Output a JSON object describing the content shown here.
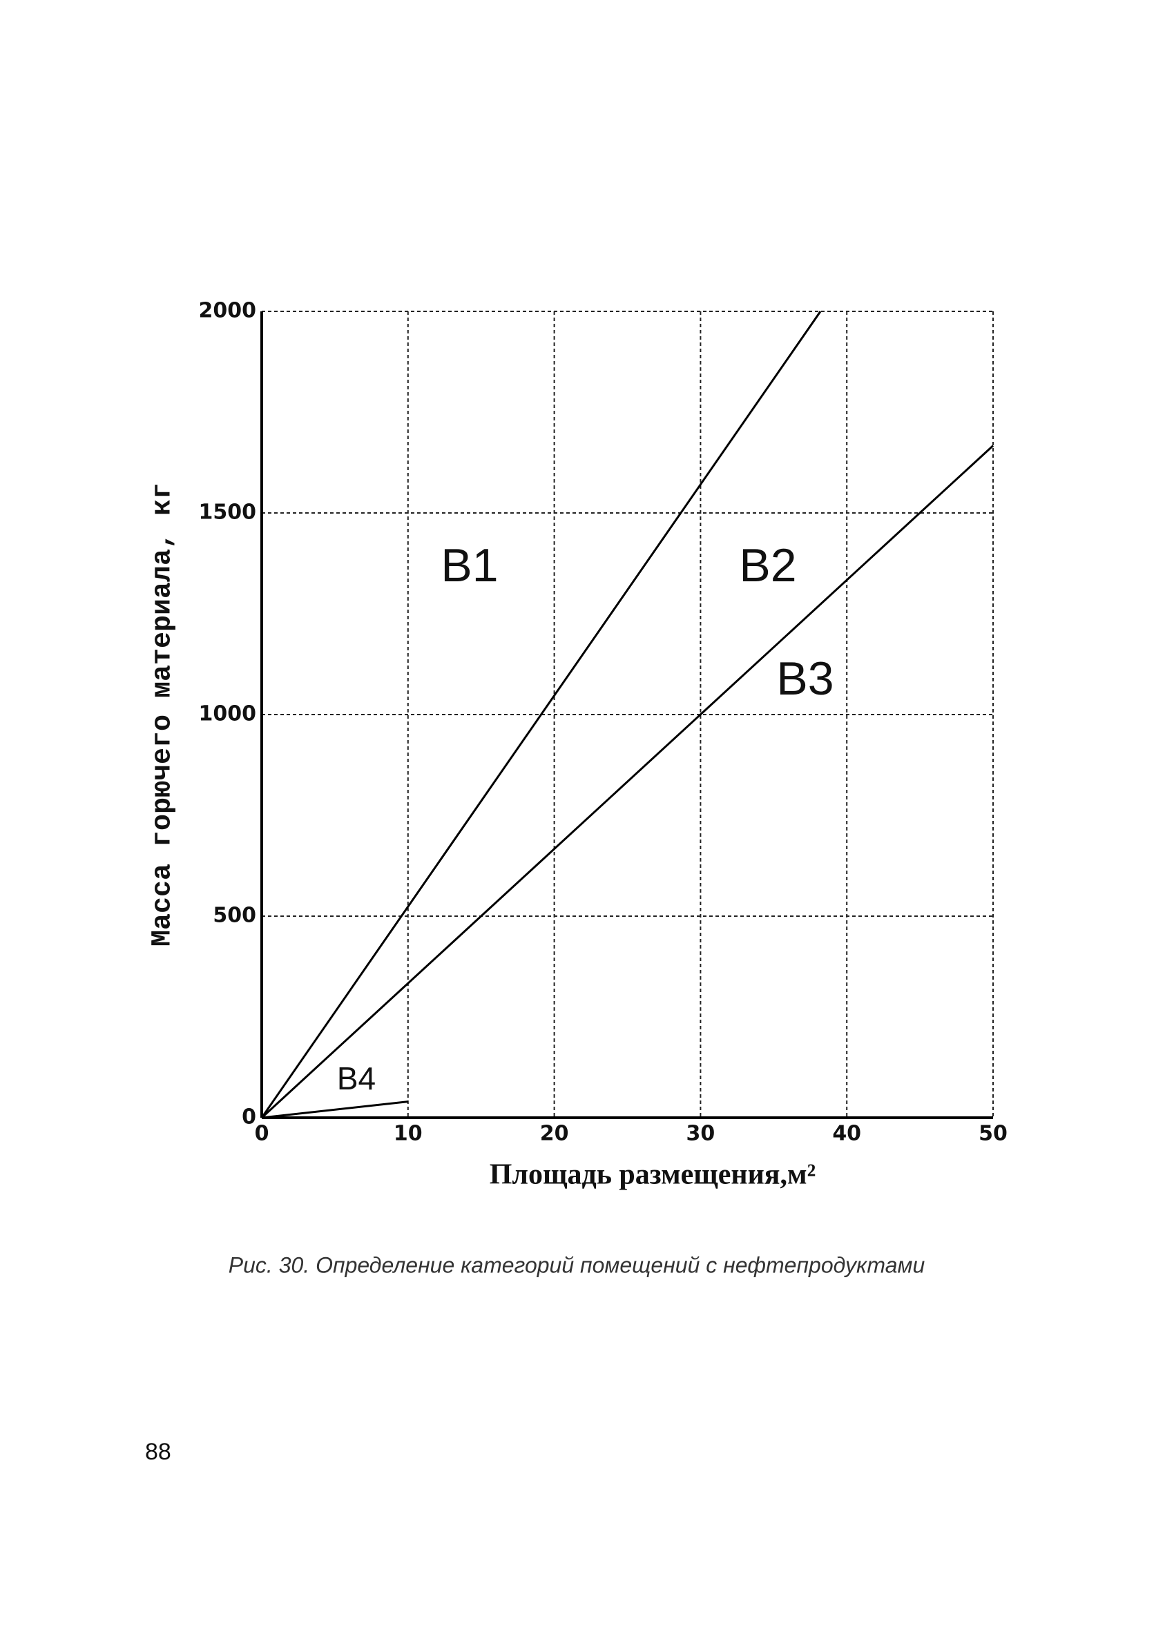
{
  "chart_data": {
    "type": "line",
    "ylabel": "Масса горючего материала, кг",
    "xlabel": "Площадь размещения,м²",
    "xlim": [
      0,
      50
    ],
    "xticks": [
      0,
      10,
      20,
      30,
      40,
      50
    ],
    "ylim": [
      0,
      2000
    ],
    "yticks": [
      0,
      500,
      1000,
      1500,
      2000
    ],
    "grid": true,
    "series": [
      {
        "color": "#000000",
        "x": [
          0,
          38.2
        ],
        "values": [
          0,
          2000
        ]
      },
      {
        "color": "#000000",
        "x": [
          0,
          50
        ],
        "values": [
          0,
          1667
        ]
      },
      {
        "color": "#000000",
        "x": [
          0,
          10
        ],
        "values": [
          0,
          40
        ]
      }
    ],
    "annotations": [
      "В1",
      "В2",
      "В3",
      "В4"
    ]
  },
  "caption": "Рис. 30. Определение категорий помещений с нефтепродуктами",
  "page_number": "88"
}
